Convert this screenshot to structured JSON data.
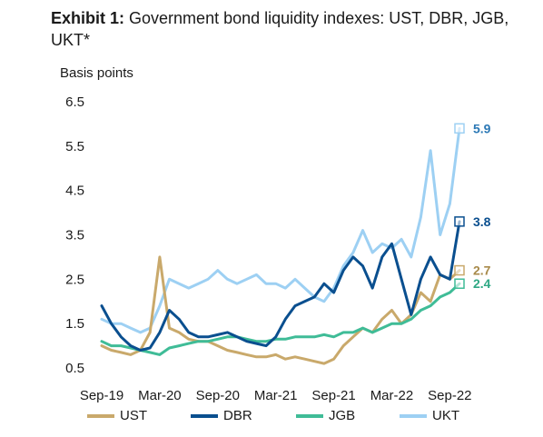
{
  "title": {
    "prefix": "Exhibit 1:",
    "text": "Government bond liquidity indexes: UST, DBR, JGB, UKT*"
  },
  "chart_data": {
    "type": "line",
    "title": "Government bond liquidity indexes: UST, DBR, JGB, UKT*",
    "ylabel": "Basis points",
    "xlabel": "",
    "ylim": [
      0.5,
      6.5
    ],
    "yticks": [
      "6.5",
      "5.5",
      "4.5",
      "3.5",
      "2.5",
      "1.5",
      "0.5"
    ],
    "xticks": [
      "Sep-19",
      "Mar-20",
      "Sep-20",
      "Mar-21",
      "Sep-21",
      "Mar-22",
      "Sep-22"
    ],
    "grid": false,
    "legend_position": "bottom",
    "x": [
      "Sep-19",
      "Oct-19",
      "Nov-19",
      "Dec-19",
      "Jan-20",
      "Feb-20",
      "Mar-20",
      "Apr-20",
      "May-20",
      "Jun-20",
      "Jul-20",
      "Aug-20",
      "Sep-20",
      "Oct-20",
      "Nov-20",
      "Dec-20",
      "Jan-21",
      "Feb-21",
      "Mar-21",
      "Apr-21",
      "May-21",
      "Jun-21",
      "Jul-21",
      "Aug-21",
      "Sep-21",
      "Oct-21",
      "Nov-21",
      "Dec-21",
      "Jan-22",
      "Feb-22",
      "Mar-22",
      "Apr-22",
      "May-22",
      "Jun-22",
      "Jul-22",
      "Aug-22",
      "Sep-22",
      "Oct-22"
    ],
    "series": [
      {
        "name": "UST",
        "color": "#c9a96b",
        "values": [
          1.0,
          0.9,
          0.85,
          0.8,
          0.9,
          1.3,
          3.0,
          1.4,
          1.3,
          1.15,
          1.1,
          1.1,
          1.0,
          0.9,
          0.85,
          0.8,
          0.75,
          0.75,
          0.8,
          0.7,
          0.75,
          0.7,
          0.65,
          0.6,
          0.7,
          1.0,
          1.2,
          1.4,
          1.3,
          1.6,
          1.8,
          1.5,
          1.7,
          2.2,
          2.0,
          2.6,
          2.5,
          2.7
        ]
      },
      {
        "name": "DBR",
        "color": "#0a4f8f",
        "values": [
          1.9,
          1.5,
          1.2,
          1.0,
          0.9,
          0.95,
          1.3,
          1.8,
          1.6,
          1.3,
          1.2,
          1.2,
          1.25,
          1.3,
          1.2,
          1.1,
          1.05,
          1.0,
          1.2,
          1.6,
          1.9,
          2.0,
          2.1,
          2.4,
          2.2,
          2.7,
          3.0,
          2.8,
          2.3,
          3.0,
          3.3,
          2.5,
          1.7,
          2.5,
          3.0,
          2.6,
          2.5,
          3.8
        ]
      },
      {
        "name": "JGB",
        "color": "#3fbc97",
        "values": [
          1.1,
          1.0,
          1.0,
          0.95,
          0.9,
          0.85,
          0.8,
          0.95,
          1.0,
          1.05,
          1.1,
          1.1,
          1.15,
          1.2,
          1.2,
          1.15,
          1.1,
          1.1,
          1.15,
          1.15,
          1.2,
          1.2,
          1.2,
          1.25,
          1.2,
          1.3,
          1.3,
          1.4,
          1.3,
          1.4,
          1.5,
          1.5,
          1.6,
          1.8,
          1.9,
          2.1,
          2.2,
          2.4
        ]
      },
      {
        "name": "UKT",
        "color": "#9dd0f3",
        "values": [
          1.6,
          1.5,
          1.5,
          1.4,
          1.3,
          1.4,
          1.9,
          2.5,
          2.4,
          2.3,
          2.4,
          2.5,
          2.7,
          2.5,
          2.4,
          2.5,
          2.6,
          2.4,
          2.4,
          2.3,
          2.5,
          2.3,
          2.1,
          2.0,
          2.3,
          2.8,
          3.1,
          3.6,
          3.1,
          3.3,
          3.2,
          3.4,
          3.0,
          3.9,
          5.4,
          3.5,
          4.2,
          5.9
        ]
      }
    ],
    "end_labels": [
      {
        "series": "UKT",
        "text": "5.9",
        "value": 5.9,
        "color": "#2b78b5"
      },
      {
        "series": "DBR",
        "text": "3.8",
        "value": 3.8,
        "color": "#0a4f8f"
      },
      {
        "series": "UST",
        "text": "2.7",
        "value": 2.7,
        "color": "#a88a4a"
      },
      {
        "series": "JGB",
        "text": "2.4",
        "value": 2.4,
        "color": "#2fa884"
      }
    ]
  }
}
